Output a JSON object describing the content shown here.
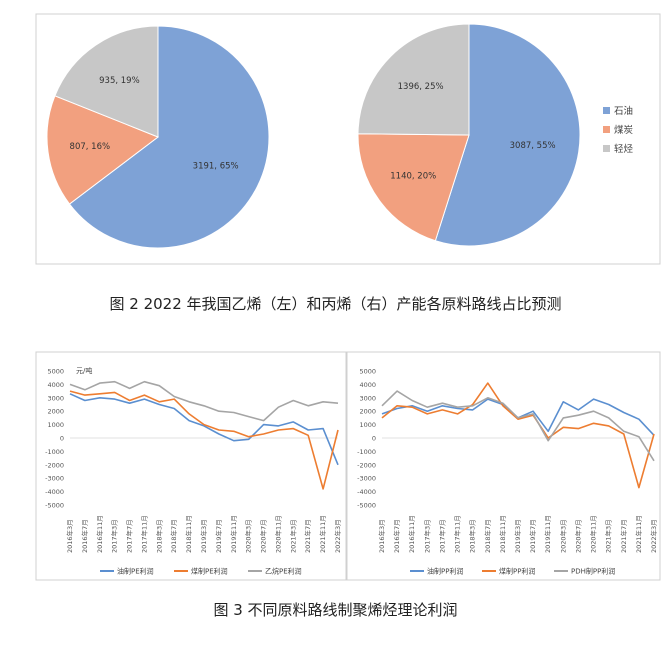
{
  "figure2": {
    "caption": "图 2  2022 年我国乙烯（左）和丙烯（右）产能各原料路线占比预测",
    "legend": [
      {
        "label": "石油",
        "color": "#7ea2d6"
      },
      {
        "label": "煤炭",
        "color": "#f2a07f"
      },
      {
        "label": "轻烃",
        "color": "#c7c7c7"
      }
    ]
  },
  "figure3": {
    "caption": "图 3  不同原料路线制聚烯烃理论利润",
    "unit_label": "元/吨",
    "left_legend": [
      "油制PE利润",
      "煤制PE利润",
      "乙烷PE利润"
    ],
    "right_legend": [
      "油制PP利润",
      "煤制PP利润",
      "PDH制PP利润"
    ]
  },
  "chart_data": [
    {
      "type": "pie",
      "labels": [
        "3191, 65%",
        "807, 16%",
        "935, 19%"
      ],
      "values": [
        3191,
        807,
        935
      ],
      "percent": [
        65,
        16,
        19
      ],
      "colors": [
        "#7ea2d6",
        "#f2a07f",
        "#c7c7c7"
      ],
      "categories": [
        "石油",
        "煤炭",
        "轻烃"
      ]
    },
    {
      "type": "pie",
      "labels": [
        "3087, 55%",
        "1140, 20%",
        "1396, 25%"
      ],
      "values": [
        3087,
        1140,
        1396
      ],
      "percent": [
        55,
        20,
        25
      ],
      "colors": [
        "#7ea2d6",
        "#f2a07f",
        "#c7c7c7"
      ],
      "categories": [
        "石油",
        "煤炭",
        "轻烃"
      ]
    },
    {
      "type": "line",
      "ylabel": "元/吨",
      "ylim": [
        -5000,
        5000
      ],
      "yticks": [
        5000,
        4000,
        3000,
        2000,
        1000,
        0,
        -1000,
        -2000,
        -3000,
        -4000,
        -5000
      ],
      "categories": [
        "2016年3月",
        "2016年7月",
        "2016年11月",
        "2017年3月",
        "2017年7月",
        "2017年11月",
        "2018年3月",
        "2018年7月",
        "2018年11月",
        "2019年3月",
        "2019年7月",
        "2019年11月",
        "2020年3月",
        "2020年7月",
        "2020年11月",
        "2021年3月",
        "2021年7月",
        "2021年11月",
        "2022年3月"
      ],
      "series": [
        {
          "name": "油制PE利润",
          "color": "#5b8fd0",
          "values": [
            3300,
            2800,
            3000,
            2900,
            2600,
            2900,
            2500,
            2200,
            1300,
            900,
            300,
            -200,
            -100,
            1000,
            900,
            1200,
            600,
            700,
            -2000
          ]
        },
        {
          "name": "煤制PE利润",
          "color": "#ed7d31",
          "values": [
            3500,
            3200,
            3300,
            3400,
            2800,
            3200,
            2700,
            2900,
            1800,
            1000,
            600,
            500,
            100,
            300,
            600,
            700,
            200,
            -3800,
            600
          ]
        },
        {
          "name": "乙烷PE利润",
          "color": "#a5a5a5",
          "values": [
            4000,
            3600,
            4100,
            4200,
            3700,
            4200,
            3900,
            3100,
            2700,
            2400,
            2000,
            1900,
            1600,
            1300,
            2300,
            2800,
            2400,
            2700,
            2600
          ]
        }
      ]
    },
    {
      "type": "line",
      "ylim": [
        -5000,
        5000
      ],
      "yticks": [
        5000,
        4000,
        3000,
        2000,
        1000,
        0,
        -1000,
        -2000,
        -3000,
        -4000,
        -5000
      ],
      "categories": [
        "2016年3月",
        "2016年7月",
        "2016年11月",
        "2017年3月",
        "2017年7月",
        "2017年11月",
        "2018年3月",
        "2018年7月",
        "2018年11月",
        "2019年3月",
        "2019年7月",
        "2019年11月",
        "2020年3月",
        "2020年7月",
        "2020年11月",
        "2021年3月",
        "2021年7月",
        "2021年11月",
        "2022年3月"
      ],
      "series": [
        {
          "name": "油制PP利润",
          "color": "#5b8fd0",
          "values": [
            1800,
            2200,
            2400,
            2000,
            2400,
            2200,
            2100,
            2900,
            2500,
            1500,
            2000,
            500,
            2700,
            2100,
            2900,
            2500,
            1900,
            1400,
            200
          ]
        },
        {
          "name": "煤制PP利润",
          "color": "#ed7d31",
          "values": [
            1500,
            2400,
            2300,
            1800,
            2100,
            1800,
            2500,
            4100,
            2400,
            1400,
            1700,
            0,
            800,
            700,
            1100,
            900,
            300,
            -3700,
            300
          ]
        },
        {
          "name": "PDH制PP利润",
          "color": "#a5a5a5",
          "values": [
            2400,
            3500,
            2800,
            2300,
            2600,
            2300,
            2400,
            3000,
            2600,
            1500,
            1800,
            -200,
            1500,
            1700,
            2000,
            1500,
            500,
            100,
            -1700
          ]
        }
      ]
    }
  ]
}
